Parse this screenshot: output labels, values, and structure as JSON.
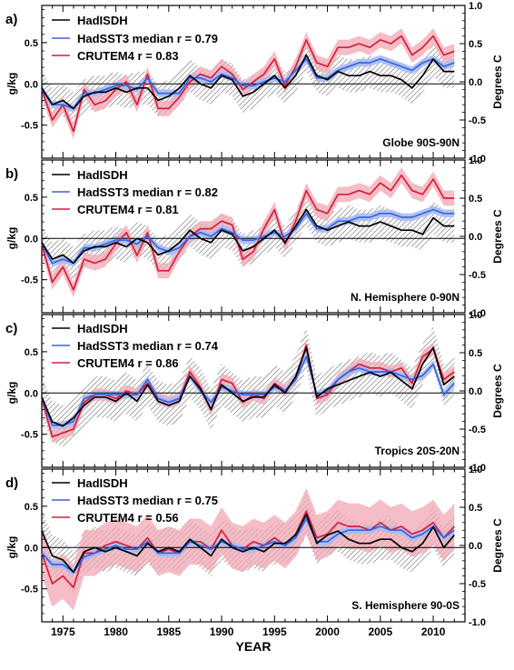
{
  "figure": {
    "xlabel": "YEAR",
    "left_axis_unit": "g/kg",
    "right_axis_unit": "Degrees C",
    "xlim": [
      1973,
      2013
    ],
    "x_ticks": [
      1975,
      1980,
      1985,
      1990,
      1995,
      2000,
      2005,
      2010
    ],
    "left_ylim": [
      -0.9,
      0.95
    ],
    "left_ticks": [
      -0.5,
      0.0,
      0.5
    ],
    "left_tick_labels": [
      "-0.5",
      "0.0",
      "0.5"
    ],
    "right_ylim": [
      -1.0,
      1.0
    ],
    "right_ticks": [
      -1.0,
      -0.5,
      0.0,
      0.5,
      1.0
    ],
    "right_tick_labels": [
      "-1.0",
      "-0.5",
      "0.0",
      "0.5",
      "1.0"
    ],
    "colors": {
      "hadisdh": "#000000",
      "hadsst3": "#3a63e0",
      "crutem4": "#d61e3a",
      "hadsst3_band": "#a9bdf2",
      "crutem4_band": "#f2a7b3",
      "hadisdh_hatch": "#444444"
    }
  },
  "chart_data": [
    {
      "type": "line",
      "panel_label": "a)",
      "region": "Globe 90S-90N",
      "legend_placement": "top-left",
      "x": [
        1973,
        1974,
        1975,
        1976,
        1977,
        1978,
        1979,
        1980,
        1981,
        1982,
        1983,
        1984,
        1985,
        1986,
        1987,
        1988,
        1989,
        1990,
        1991,
        1992,
        1993,
        1994,
        1995,
        1996,
        1997,
        1998,
        1999,
        2000,
        2001,
        2002,
        2003,
        2004,
        2005,
        2006,
        2007,
        2008,
        2009,
        2010,
        2011,
        2012
      ],
      "series": [
        {
          "name": "HadISDH",
          "axis": "left",
          "uncertainty": 0.2,
          "values": [
            -0.05,
            -0.25,
            -0.2,
            -0.3,
            -0.15,
            -0.1,
            -0.1,
            -0.05,
            -0.1,
            -0.05,
            -0.05,
            -0.2,
            -0.15,
            -0.05,
            0.1,
            0.0,
            -0.05,
            0.1,
            0.05,
            -0.15,
            -0.1,
            0.0,
            0.1,
            -0.05,
            0.1,
            0.35,
            0.1,
            0.05,
            0.15,
            0.1,
            0.1,
            0.15,
            0.1,
            0.1,
            0.05,
            -0.05,
            0.1,
            0.3,
            0.15,
            0.15
          ]
        },
        {
          "name": "HadSST3 median r = 0.79",
          "axis": "right",
          "uncertainty": 0.05,
          "values": [
            -0.1,
            -0.3,
            -0.3,
            -0.35,
            -0.15,
            -0.15,
            -0.1,
            -0.05,
            -0.05,
            -0.1,
            0.05,
            -0.15,
            -0.15,
            -0.15,
            0.05,
            0.05,
            0.0,
            0.1,
            0.05,
            -0.05,
            -0.05,
            0.0,
            0.05,
            0.0,
            0.15,
            0.3,
            0.05,
            0.05,
            0.15,
            0.2,
            0.25,
            0.25,
            0.3,
            0.25,
            0.2,
            0.15,
            0.25,
            0.3,
            0.2,
            0.25
          ]
        },
        {
          "name": "CRUTEM4 r = 0.83",
          "axis": "right",
          "uncertainty": 0.1,
          "values": [
            -0.1,
            -0.5,
            -0.3,
            -0.65,
            -0.1,
            -0.3,
            -0.25,
            -0.1,
            0.0,
            -0.3,
            0.1,
            -0.35,
            -0.35,
            -0.2,
            0.0,
            0.1,
            0.05,
            0.2,
            0.1,
            -0.1,
            0.0,
            0.1,
            0.3,
            -0.05,
            0.2,
            0.55,
            0.25,
            0.2,
            0.45,
            0.45,
            0.5,
            0.45,
            0.55,
            0.5,
            0.6,
            0.35,
            0.45,
            0.6,
            0.35,
            0.4
          ]
        }
      ]
    },
    {
      "type": "line",
      "panel_label": "b)",
      "region": "N. Hemisphere 0-90N",
      "legend_placement": "top-left",
      "x": [
        1973,
        1974,
        1975,
        1976,
        1977,
        1978,
        1979,
        1980,
        1981,
        1982,
        1983,
        1984,
        1985,
        1986,
        1987,
        1988,
        1989,
        1990,
        1991,
        1992,
        1993,
        1994,
        1995,
        1996,
        1997,
        1998,
        1999,
        2000,
        2001,
        2002,
        2003,
        2004,
        2005,
        2006,
        2007,
        2008,
        2009,
        2010,
        2011,
        2012
      ],
      "series": [
        {
          "name": "HadISDH",
          "axis": "left",
          "uncertainty": 0.2,
          "values": [
            -0.05,
            -0.25,
            -0.2,
            -0.3,
            -0.15,
            -0.1,
            -0.1,
            -0.05,
            -0.1,
            0.0,
            -0.05,
            -0.2,
            -0.15,
            -0.05,
            0.1,
            0.0,
            -0.05,
            0.1,
            0.05,
            -0.15,
            -0.1,
            0.0,
            0.1,
            -0.05,
            0.15,
            0.35,
            0.15,
            0.1,
            0.15,
            0.2,
            0.15,
            0.15,
            0.2,
            0.15,
            0.1,
            0.1,
            0.05,
            0.25,
            0.15,
            0.15
          ]
        },
        {
          "name": "HadSST3 median r = 0.82",
          "axis": "right",
          "uncertainty": 0.05,
          "values": [
            -0.1,
            -0.35,
            -0.3,
            -0.35,
            -0.15,
            -0.15,
            -0.1,
            -0.05,
            -0.05,
            -0.1,
            0.0,
            -0.15,
            -0.2,
            -0.15,
            0.0,
            0.05,
            0.0,
            0.1,
            0.05,
            -0.05,
            -0.05,
            0.0,
            0.05,
            0.0,
            0.1,
            0.3,
            0.1,
            0.1,
            0.2,
            0.2,
            0.25,
            0.25,
            0.3,
            0.3,
            0.25,
            0.25,
            0.3,
            0.35,
            0.3,
            0.3
          ]
        },
        {
          "name": "CRUTEM4 r = 0.81",
          "axis": "right",
          "uncertainty": 0.1,
          "values": [
            -0.1,
            -0.6,
            -0.4,
            -0.7,
            -0.3,
            -0.35,
            -0.3,
            -0.1,
            0.05,
            -0.25,
            0.05,
            -0.45,
            -0.45,
            -0.2,
            0.0,
            0.1,
            0.1,
            0.2,
            0.15,
            -0.3,
            -0.2,
            0.1,
            0.35,
            -0.1,
            0.2,
            0.6,
            0.35,
            0.3,
            0.55,
            0.55,
            0.6,
            0.55,
            0.7,
            0.6,
            0.8,
            0.6,
            0.55,
            0.75,
            0.5,
            0.5
          ]
        }
      ]
    },
    {
      "type": "line",
      "panel_label": "c)",
      "region": "Tropics 20S-20N",
      "legend_placement": "top-left",
      "x": [
        1973,
        1974,
        1975,
        1976,
        1977,
        1978,
        1979,
        1980,
        1981,
        1982,
        1983,
        1984,
        1985,
        1986,
        1987,
        1988,
        1989,
        1990,
        1991,
        1992,
        1993,
        1994,
        1995,
        1996,
        1997,
        1998,
        1999,
        2000,
        2001,
        2002,
        2003,
        2004,
        2005,
        2006,
        2007,
        2008,
        2009,
        2010,
        2011,
        2012
      ],
      "series": [
        {
          "name": "HadISDH",
          "axis": "left",
          "uncertainty": 0.25,
          "values": [
            -0.05,
            -0.35,
            -0.4,
            -0.3,
            -0.15,
            -0.05,
            -0.05,
            -0.1,
            0.0,
            -0.1,
            0.1,
            -0.1,
            -0.15,
            -0.1,
            0.2,
            0.05,
            -0.2,
            0.1,
            0.0,
            -0.1,
            -0.05,
            -0.05,
            0.1,
            0.0,
            0.2,
            0.55,
            -0.05,
            0.05,
            0.1,
            0.15,
            0.2,
            0.25,
            0.2,
            0.25,
            0.15,
            0.05,
            0.35,
            0.55,
            0.1,
            0.2
          ]
        },
        {
          "name": "HadSST3 median r = 0.74",
          "axis": "right",
          "uncertainty": 0.05,
          "values": [
            -0.1,
            -0.45,
            -0.45,
            -0.4,
            -0.1,
            -0.05,
            -0.05,
            -0.05,
            -0.05,
            -0.05,
            0.15,
            -0.1,
            -0.15,
            -0.1,
            0.2,
            0.0,
            -0.15,
            0.05,
            0.0,
            -0.05,
            -0.05,
            -0.05,
            0.05,
            0.0,
            0.15,
            0.45,
            -0.05,
            0.0,
            0.15,
            0.25,
            0.3,
            0.25,
            0.25,
            0.25,
            0.2,
            0.15,
            0.2,
            0.35,
            -0.05,
            0.1
          ]
        },
        {
          "name": "CRUTEM4 r = 0.86",
          "axis": "right",
          "uncertainty": 0.08,
          "values": [
            -0.1,
            -0.6,
            -0.55,
            -0.5,
            -0.15,
            -0.05,
            -0.05,
            -0.1,
            0.0,
            -0.05,
            0.1,
            -0.1,
            -0.15,
            -0.1,
            0.25,
            0.05,
            -0.25,
            0.15,
            0.1,
            -0.15,
            -0.05,
            -0.1,
            0.1,
            0.0,
            0.15,
            0.6,
            -0.1,
            -0.05,
            0.15,
            0.25,
            0.35,
            0.3,
            0.3,
            0.25,
            0.3,
            0.1,
            0.45,
            0.55,
            0.15,
            0.25
          ]
        }
      ]
    },
    {
      "type": "line",
      "panel_label": "d)",
      "region": "S. Hemisphere 90-0S",
      "legend_placement": "top-left",
      "x": [
        1973,
        1974,
        1975,
        1976,
        1977,
        1978,
        1979,
        1980,
        1981,
        1982,
        1983,
        1984,
        1985,
        1986,
        1987,
        1988,
        1989,
        1990,
        1991,
        1992,
        1993,
        1994,
        1995,
        1996,
        1997,
        1998,
        1999,
        2000,
        2001,
        2002,
        2003,
        2004,
        2005,
        2006,
        2007,
        2008,
        2009,
        2010,
        2011,
        2012
      ],
      "series": [
        {
          "name": "HadISDH",
          "axis": "left",
          "uncertainty": 0.25,
          "values": [
            0.2,
            -0.1,
            -0.15,
            -0.3,
            -0.05,
            0.0,
            -0.05,
            0.0,
            -0.05,
            -0.1,
            0.05,
            -0.05,
            0.0,
            -0.05,
            0.1,
            0.0,
            -0.1,
            0.1,
            0.0,
            -0.05,
            0.0,
            -0.05,
            0.05,
            0.05,
            0.15,
            0.4,
            0.05,
            0.15,
            0.2,
            0.1,
            0.05,
            0.05,
            0.1,
            0.1,
            0.0,
            -0.05,
            0.05,
            0.25,
            0.0,
            0.15
          ]
        },
        {
          "name": "HadSST3 median r = 0.75",
          "axis": "right",
          "uncertainty": 0.05,
          "values": [
            -0.1,
            -0.25,
            -0.25,
            -0.35,
            -0.15,
            -0.1,
            -0.05,
            0.0,
            -0.05,
            -0.05,
            0.05,
            -0.1,
            -0.1,
            -0.1,
            0.05,
            0.0,
            -0.05,
            0.05,
            0.0,
            -0.05,
            -0.05,
            0.0,
            0.05,
            0.0,
            0.1,
            0.35,
            0.05,
            0.05,
            0.15,
            0.2,
            0.2,
            0.2,
            0.25,
            0.2,
            0.2,
            0.1,
            0.15,
            0.25,
            0.1,
            0.2
          ]
        },
        {
          "name": "CRUTEM4 r = 0.56",
          "axis": "right",
          "uncertainty": 0.3,
          "values": [
            -0.1,
            -0.5,
            -0.4,
            -0.55,
            -0.1,
            -0.1,
            0.0,
            0.05,
            0.0,
            -0.05,
            0.1,
            -0.1,
            -0.05,
            -0.1,
            0.05,
            0.05,
            -0.05,
            0.2,
            0.0,
            -0.05,
            0.05,
            0.0,
            0.1,
            0.0,
            0.15,
            0.45,
            0.1,
            0.15,
            0.3,
            0.25,
            0.25,
            0.2,
            0.3,
            0.2,
            0.25,
            0.15,
            0.2,
            0.3,
            0.1,
            0.25
          ]
        }
      ]
    }
  ]
}
